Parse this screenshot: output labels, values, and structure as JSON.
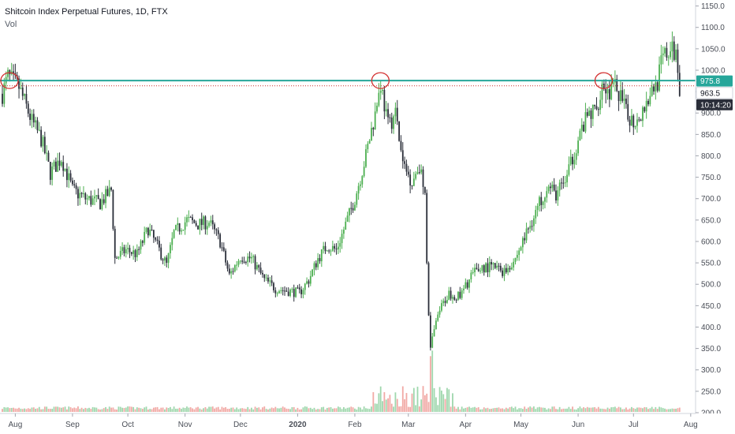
{
  "header": {
    "symbol_line": "Shitcoin Index Perpetual Futures, 1D, FTX",
    "volume_label": "Vol"
  },
  "price_axis": {
    "labels": [
      "1150.0",
      "1100.0",
      "1050.0",
      "1000.0",
      "950.0",
      "900.0",
      "850.0",
      "800.0",
      "750.0",
      "700.0",
      "650.0",
      "600.0",
      "550.0",
      "500.0",
      "450.0",
      "400.0",
      "350.0",
      "300.0",
      "250.0",
      "200.0"
    ],
    "last_price_tag": "975.8",
    "level_tag": "963.5",
    "countdown_tag": "10:14:20"
  },
  "time_axis": {
    "labels": [
      "Aug",
      "Sep",
      "Oct",
      "Nov",
      "Dec",
      "2020",
      "Feb",
      "Mar",
      "Apr",
      "May",
      "Jun",
      "Jul",
      "Aug"
    ]
  },
  "colors": {
    "up": "#4caf50",
    "down": "#2a2e39",
    "vol_up": "#9fd7ad",
    "vol_down": "#f1a9a5",
    "resistance_line": "#26a69a",
    "dotted_line": "#c9302c",
    "circle": "#d32f2f",
    "last_price_bg": "#26a69a",
    "level_bg": "#ffffff",
    "countdown_bg": "#2a2e39"
  },
  "chart_data": {
    "type": "candlestick",
    "title": "Shitcoin Index Perpetual Futures, 1D, FTX",
    "ylim": [
      195,
      1170
    ],
    "y_ticks": [
      1150,
      1100,
      1050,
      1000,
      950,
      900,
      850,
      800,
      750,
      700,
      650,
      600,
      550,
      500,
      450,
      400,
      350,
      300,
      250,
      200
    ],
    "x_ticks": [
      "Aug",
      "Sep",
      "Oct",
      "Nov",
      "Dec",
      "2020",
      "Feb",
      "Mar",
      "Apr",
      "May",
      "Jun",
      "Jul",
      "Aug"
    ],
    "horizontal_lines": [
      {
        "value": 975.8,
        "style": "solid",
        "label": "975.8"
      },
      {
        "value": 963.5,
        "style": "dotted",
        "label": "963.5"
      }
    ],
    "highlighted_touches": [
      "2019-07-28",
      "2020-02-14",
      "2020-06-14"
    ],
    "close_path": [
      [
        "2019-07-25",
        945
      ],
      [
        "2019-07-28",
        985
      ],
      [
        "2019-08-03",
        960
      ],
      [
        "2019-08-10",
        880
      ],
      [
        "2019-08-15",
        840
      ],
      [
        "2019-08-20",
        760
      ],
      [
        "2019-08-26",
        795
      ],
      [
        "2019-09-01",
        720
      ],
      [
        "2019-09-08",
        700
      ],
      [
        "2019-09-16",
        690
      ],
      [
        "2019-09-22",
        720
      ],
      [
        "2019-09-24",
        560
      ],
      [
        "2019-09-30",
        580
      ],
      [
        "2019-10-06",
        570
      ],
      [
        "2019-10-12",
        630
      ],
      [
        "2019-10-18",
        580
      ],
      [
        "2019-10-22",
        545
      ],
      [
        "2019-10-26",
        620
      ],
      [
        "2019-11-02",
        650
      ],
      [
        "2019-11-08",
        640
      ],
      [
        "2019-11-14",
        645
      ],
      [
        "2019-11-20",
        600
      ],
      [
        "2019-11-25",
        520
      ],
      [
        "2019-12-01",
        565
      ],
      [
        "2019-12-07",
        560
      ],
      [
        "2019-12-14",
        510
      ],
      [
        "2019-12-20",
        490
      ],
      [
        "2019-12-26",
        485
      ],
      [
        "2020-01-02",
        480
      ],
      [
        "2020-01-07",
        510
      ],
      [
        "2020-01-12",
        560
      ],
      [
        "2020-01-17",
        590
      ],
      [
        "2020-01-22",
        580
      ],
      [
        "2020-01-27",
        640
      ],
      [
        "2020-02-01",
        700
      ],
      [
        "2020-02-07",
        800
      ],
      [
        "2020-02-12",
        900
      ],
      [
        "2020-02-15",
        970
      ],
      [
        "2020-02-19",
        870
      ],
      [
        "2020-02-23",
        900
      ],
      [
        "2020-02-27",
        780
      ],
      [
        "2020-03-03",
        740
      ],
      [
        "2020-03-07",
        780
      ],
      [
        "2020-03-10",
        700
      ],
      [
        "2020-03-12",
        420
      ],
      [
        "2020-03-13",
        360
      ],
      [
        "2020-03-18",
        440
      ],
      [
        "2020-03-23",
        480
      ],
      [
        "2020-03-29",
        470
      ],
      [
        "2020-04-04",
        520
      ],
      [
        "2020-04-10",
        540
      ],
      [
        "2020-04-16",
        540
      ],
      [
        "2020-04-22",
        530
      ],
      [
        "2020-04-28",
        560
      ],
      [
        "2020-05-04",
        620
      ],
      [
        "2020-05-10",
        680
      ],
      [
        "2020-05-15",
        730
      ],
      [
        "2020-05-20",
        710
      ],
      [
        "2020-05-26",
        750
      ],
      [
        "2020-06-01",
        840
      ],
      [
        "2020-06-06",
        890
      ],
      [
        "2020-06-11",
        910
      ],
      [
        "2020-06-14",
        970
      ],
      [
        "2020-06-17",
        950
      ],
      [
        "2020-06-22",
        960
      ],
      [
        "2020-06-27",
        900
      ],
      [
        "2020-07-01",
        880
      ],
      [
        "2020-07-05",
        900
      ],
      [
        "2020-07-10",
        945
      ],
      [
        "2020-07-14",
        975
      ],
      [
        "2020-07-17",
        1030
      ],
      [
        "2020-07-21",
        1045
      ],
      [
        "2020-07-24",
        1040
      ],
      [
        "2020-07-26",
        963
      ]
    ]
  }
}
